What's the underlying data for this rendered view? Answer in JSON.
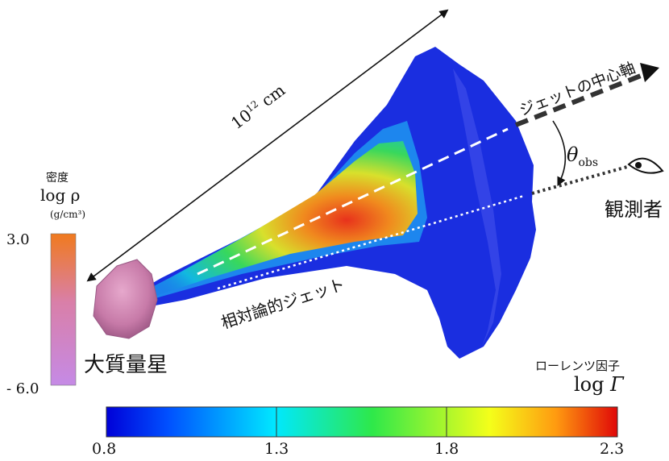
{
  "scale_label": {
    "base": "10",
    "exp": "12",
    "unit": " cm"
  },
  "density": {
    "title": "密度",
    "symbol": "log ρ",
    "unit": "(g/cm³)",
    "max": "3.0",
    "min": "- 6.0"
  },
  "star_label": "大質量星",
  "jet_label": "相対論的ジェット",
  "axis_label": "ジェットの中心軸",
  "theta": {
    "symbol": "θ",
    "sub": "obs"
  },
  "observer_label": "観測者",
  "lorentz": {
    "title": "ローレンツ因子",
    "symbol_prefix": "log ",
    "symbol_var": "Γ",
    "ticks": [
      "0.8",
      "1.3",
      "1.8",
      "2.3"
    ]
  },
  "colors": {
    "jet_outer": "#1a2ee0",
    "jet_core": "#e8321c",
    "density_top": "#f07a1e",
    "density_bottom": "#c58ae6",
    "star": "#c77aa8"
  }
}
